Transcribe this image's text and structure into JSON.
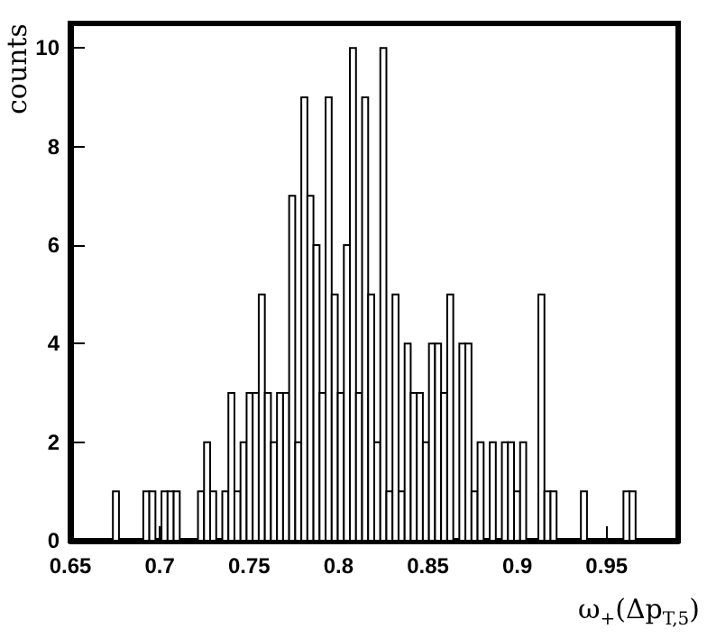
{
  "chart_data": {
    "type": "histogram",
    "xlabel": "ω$_{+}$(Δp$_{T,5}$)",
    "ylabel": "counts",
    "bins": [
      0.65,
      0.6534,
      0.6568,
      0.6602,
      0.6636,
      0.667,
      0.6704,
      0.6738,
      0.6772,
      0.6806,
      0.684,
      0.6874,
      0.6908,
      0.6942,
      0.6976,
      0.701,
      0.7044,
      0.7078,
      0.7112,
      0.7146,
      0.718,
      0.7214,
      0.7248,
      0.7282,
      0.7316,
      0.735,
      0.7384,
      0.7418,
      0.7452,
      0.7486,
      0.752,
      0.7554,
      0.7588,
      0.7622,
      0.7656,
      0.769,
      0.7724,
      0.7758,
      0.7792,
      0.7826,
      0.786,
      0.7894,
      0.7928,
      0.7962,
      0.7996,
      0.803,
      0.8064,
      0.8098,
      0.8132,
      0.8166,
      0.82,
      0.8234,
      0.8268,
      0.8302,
      0.8336,
      0.837,
      0.8404,
      0.8438,
      0.8472,
      0.8506,
      0.854,
      0.8574,
      0.8608,
      0.8642,
      0.8676,
      0.871,
      0.8744,
      0.8778,
      0.8812,
      0.8846,
      0.888,
      0.8914,
      0.8948,
      0.8982,
      0.9016,
      0.905,
      0.9084,
      0.9118,
      0.9152,
      0.9186,
      0.922,
      0.9254,
      0.9288,
      0.9322,
      0.9356,
      0.939,
      0.9424,
      0.9458,
      0.9492,
      0.9526,
      0.956,
      0.9594,
      0.9628,
      0.9662,
      0.9696,
      0.973,
      0.9764,
      0.9798,
      0.9832,
      0.9866,
      0.99
    ],
    "values": [
      0,
      0,
      0,
      0,
      0,
      0,
      0,
      1,
      0,
      0,
      0,
      0,
      1,
      1,
      0,
      1,
      1,
      1,
      0,
      0,
      0,
      1,
      2,
      1,
      0,
      1,
      3,
      1,
      2,
      3,
      3,
      5,
      3,
      2,
      3,
      3,
      7,
      2,
      9,
      7,
      6,
      3,
      9,
      5,
      3,
      6,
      10,
      3,
      9,
      5,
      2,
      10,
      1,
      5,
      1,
      4,
      3,
      3,
      2,
      4,
      4,
      3,
      5,
      0,
      4,
      4,
      1,
      2,
      0,
      2,
      0,
      2,
      2,
      1,
      2,
      0,
      0,
      5,
      1,
      1,
      0,
      0,
      0,
      0,
      1,
      0,
      0,
      0,
      0,
      0,
      0,
      1,
      1,
      0,
      0,
      0,
      0,
      0,
      0,
      0
    ],
    "color": "#000000",
    "xlim": [
      0.65,
      0.99
    ],
    "xticks": [
      0.65,
      0.7,
      0.75,
      0.8,
      0.85,
      0.9,
      0.95
    ],
    "ylim": [
      0,
      10.5
    ],
    "yticks": [
      0,
      2,
      4,
      6,
      8,
      10
    ],
    "grid": false
  }
}
